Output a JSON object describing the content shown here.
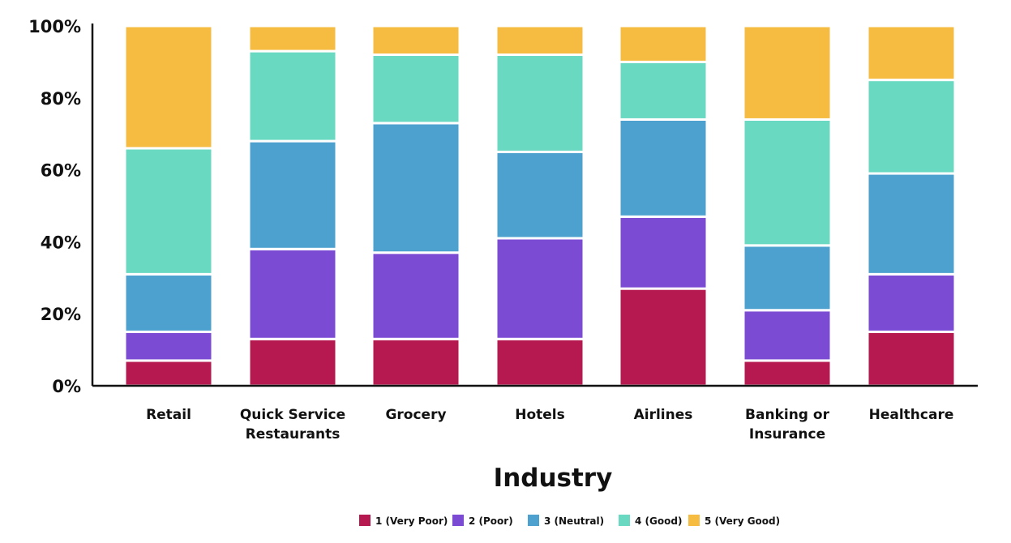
{
  "chart_data": {
    "type": "bar",
    "stacked": true,
    "categories": [
      "Retail",
      "Quick Service Restaurants",
      "Grocery",
      "Hotels",
      "Airlines",
      "Banking or Insurance",
      "Healthcare"
    ],
    "category_lines": [
      [
        "Retail"
      ],
      [
        "Quick Service",
        "Restaurants"
      ],
      [
        "Grocery"
      ],
      [
        "Hotels"
      ],
      [
        "Airlines"
      ],
      [
        "Banking or",
        "Insurance"
      ],
      [
        "Healthcare"
      ]
    ],
    "series": [
      {
        "name": "1 (Very Poor)",
        "color": "#B5194F",
        "values": [
          7,
          13,
          13,
          13,
          27,
          7,
          15
        ]
      },
      {
        "name": "2 (Poor)",
        "color": "#7B4BD4",
        "values": [
          8,
          25,
          24,
          28,
          20,
          14,
          16
        ]
      },
      {
        "name": "3 (Neutral)",
        "color": "#4DA1CF",
        "values": [
          16,
          30,
          36,
          24,
          27,
          18,
          28
        ]
      },
      {
        "name": "4 (Good)",
        "color": "#69D9C2",
        "values": [
          35,
          25,
          19,
          27,
          16,
          35,
          26
        ]
      },
      {
        "name": "5 (Very Good)",
        "color": "#F6BC42",
        "values": [
          34,
          7,
          8,
          8,
          10,
          26,
          15
        ]
      }
    ],
    "title": "",
    "xlabel": "Industry",
    "ylabel": "",
    "ylim": [
      0,
      100
    ],
    "yticks": [
      0,
      20,
      40,
      60,
      80,
      100
    ],
    "ytick_labels": [
      "0%",
      "20%",
      "40%",
      "60%",
      "80%",
      "100%"
    ],
    "grid": false,
    "legend_position": "bottom-center"
  }
}
